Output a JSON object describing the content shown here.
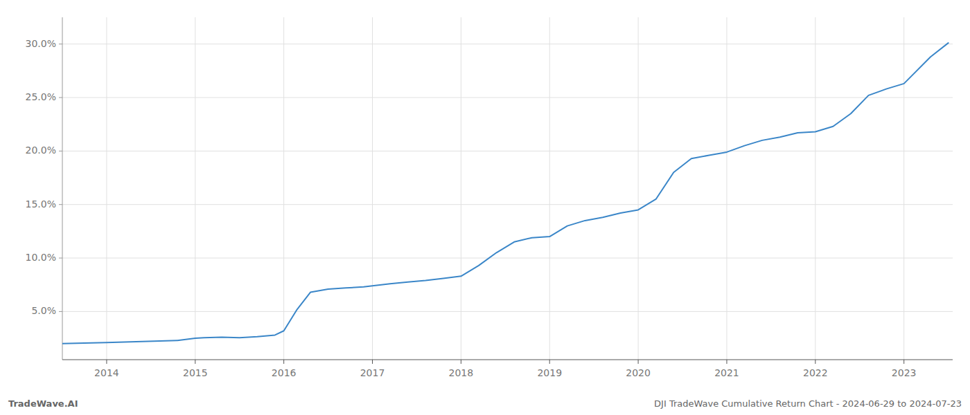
{
  "chart_data": {
    "type": "line",
    "x": [
      2013.5,
      2014.0,
      2014.2,
      2014.4,
      2014.6,
      2014.8,
      2015.0,
      2015.1,
      2015.3,
      2015.5,
      2015.7,
      2015.9,
      2016.0,
      2016.15,
      2016.3,
      2016.5,
      2016.7,
      2016.9,
      2017.0,
      2017.2,
      2017.4,
      2017.6,
      2017.8,
      2018.0,
      2018.2,
      2018.4,
      2018.6,
      2018.8,
      2019.0,
      2019.2,
      2019.4,
      2019.6,
      2019.8,
      2020.0,
      2020.2,
      2020.4,
      2020.6,
      2020.8,
      2021.0,
      2021.2,
      2021.4,
      2021.6,
      2021.8,
      2022.0,
      2022.2,
      2022.4,
      2022.6,
      2022.8,
      2023.0,
      2023.3,
      2023.5
    ],
    "values": [
      2.0,
      2.1,
      2.15,
      2.2,
      2.25,
      2.3,
      2.5,
      2.55,
      2.6,
      2.55,
      2.65,
      2.8,
      3.2,
      5.2,
      6.8,
      7.1,
      7.2,
      7.3,
      7.4,
      7.6,
      7.75,
      7.9,
      8.1,
      8.3,
      9.3,
      10.5,
      11.5,
      11.9,
      12.0,
      13.0,
      13.5,
      13.8,
      14.2,
      14.5,
      15.5,
      18.0,
      19.3,
      19.6,
      19.9,
      20.5,
      21.0,
      21.3,
      21.7,
      21.8,
      22.3,
      23.5,
      25.2,
      25.8,
      26.3,
      28.8,
      30.1
    ],
    "color": "#3a86c8",
    "xlim": [
      2013.5,
      2023.55
    ],
    "xticks": [
      2014,
      2015,
      2016,
      2017,
      2018,
      2019,
      2020,
      2021,
      2022,
      2023
    ],
    "ylim": [
      0.5,
      32.5
    ],
    "yticks": [
      {
        "value": 5.0,
        "label": "5.0%"
      },
      {
        "value": 10.0,
        "label": "10.0%"
      },
      {
        "value": 15.0,
        "label": "15.0%"
      },
      {
        "value": 20.0,
        "label": "20.0%"
      },
      {
        "value": 25.0,
        "label": "25.0%"
      },
      {
        "value": 30.0,
        "label": "30.0%"
      }
    ],
    "grid": true,
    "annotations": [
      "TradeWave.AI",
      "DJI TradeWave Cumulative Return Chart - 2024-06-29 to 2024-07-23"
    ]
  }
}
